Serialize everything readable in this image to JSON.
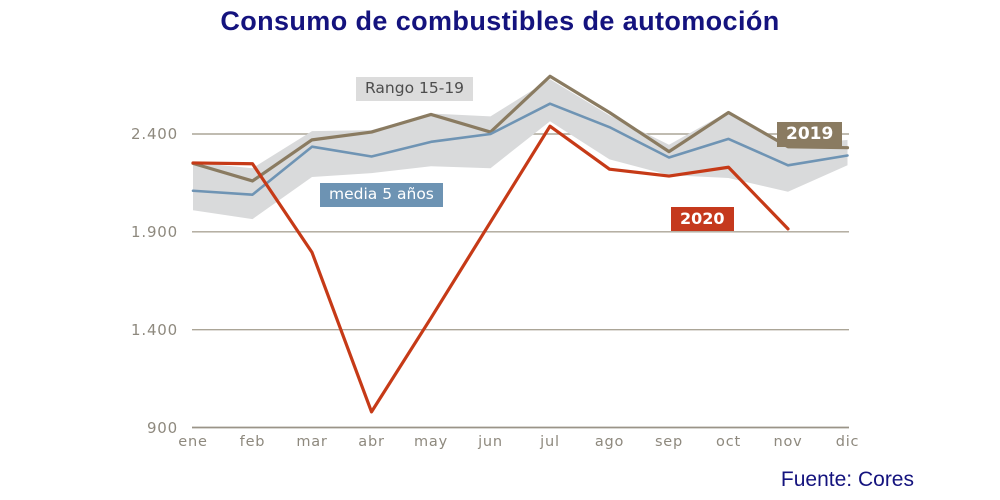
{
  "title": "Consumo de combustibles de automoción",
  "source": "Fuente: Cores",
  "colors": {
    "title_text": "#14137e",
    "source_text": "#14137e",
    "band_fill": "#d9dadb",
    "line_2019": "#8a7b61",
    "line_media": "#6f94b4",
    "line_2020": "#c63a17",
    "grid_line": "#aba597",
    "axis_line": "#9a9488",
    "tick_text": "#8e897e",
    "label_rango_bg": "#dcdcdc",
    "label_rango_text": "#4d4d4d",
    "label_media_bg": "#6d93b3",
    "label_media_text": "#ffffff",
    "label_2019_bg": "#8a7b61",
    "label_2019_text": "#ffffff",
    "label_2020_bg": "#c5391d",
    "label_2020_text": "#ffffff"
  },
  "chart_data": {
    "type": "line",
    "title": "Consumo de combustibles de automoción",
    "categories": [
      "ene",
      "feb",
      "mar",
      "abr",
      "may",
      "jun",
      "jul",
      "ago",
      "sep",
      "oct",
      "nov",
      "dic"
    ],
    "y_ticks": [
      {
        "label": "2.400",
        "value": 2400
      },
      {
        "label": "1.900",
        "value": 1900
      },
      {
        "label": "1.400",
        "value": 1400
      },
      {
        "label": "900",
        "value": 900
      }
    ],
    "ylim": [
      900,
      2760
    ],
    "grid": "horizontal-only",
    "legend": {
      "rango": "Rango 15-19",
      "media": "media 5 años",
      "y2019": "2019",
      "y2020": "2020"
    },
    "band": {
      "name": "Rango 15-19",
      "upper": [
        2255,
        2225,
        2415,
        2420,
        2505,
        2490,
        2680,
        2495,
        2345,
        2515,
        2340,
        2370
      ],
      "lower": [
        2010,
        1965,
        2180,
        2200,
        2235,
        2225,
        2465,
        2270,
        2190,
        2175,
        2105,
        2240
      ]
    },
    "series": [
      {
        "name": "2019",
        "color_key": "line_2019",
        "width": 3.2,
        "values": [
          2250,
          2160,
          2370,
          2410,
          2500,
          2410,
          2695,
          2510,
          2310,
          2510,
          2335,
          2330
        ]
      },
      {
        "name": "media 5 años",
        "color_key": "line_media",
        "width": 2.6,
        "values": [
          2110,
          2090,
          2335,
          2285,
          2360,
          2400,
          2555,
          2435,
          2280,
          2375,
          2240,
          2290
        ]
      },
      {
        "name": "2020",
        "color_key": "line_2020",
        "width": 3.2,
        "values": [
          2252,
          2248,
          1795,
          980,
          1460,
          1950,
          2440,
          2220,
          2185,
          2230,
          1915,
          null
        ]
      }
    ]
  }
}
